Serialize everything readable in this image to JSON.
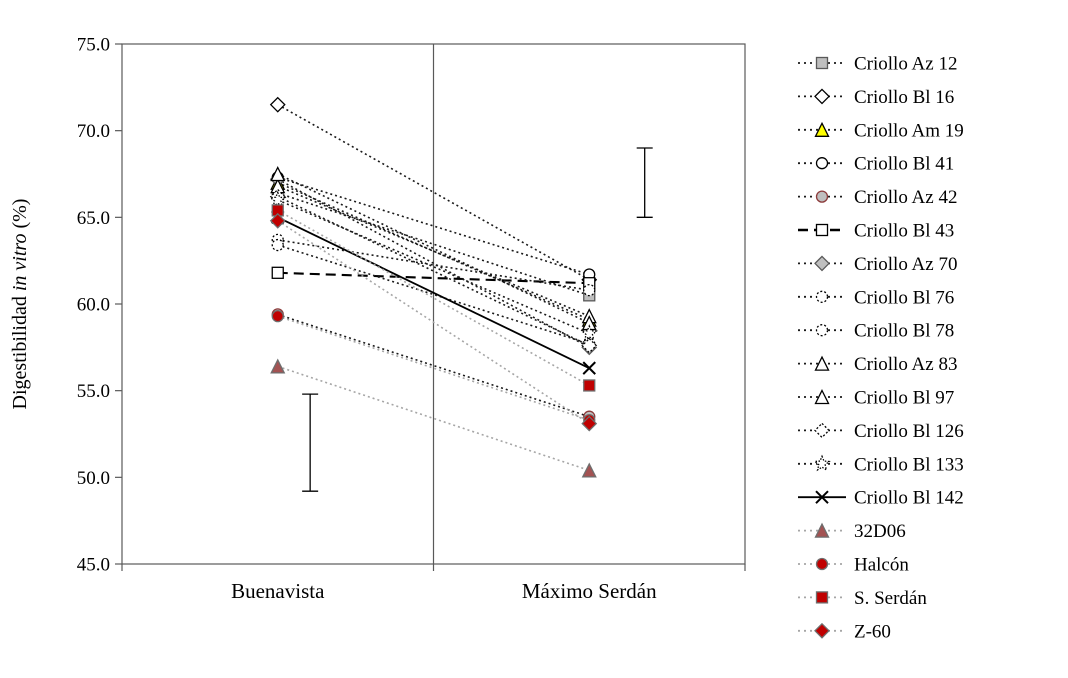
{
  "figure": {
    "background": "#ffffff",
    "border_color": "#595959",
    "criollo_line_color": "#1a1a1a",
    "hybrid_line_color": "#a6a6a6"
  },
  "chart_data": {
    "type": "line",
    "categories": [
      "Buenavista",
      "Máximo Serdán"
    ],
    "y_axis": {
      "label_pre": "Digestibilidad ",
      "label_italic": "in vitro",
      "label_post": " (%)",
      "min": 45,
      "max": 75,
      "step": 5,
      "tick_decimals": 1,
      "tick_labels": [
        "45.0",
        "50.0",
        "55.0",
        "60.0",
        "65.0",
        "70.0",
        "75.0"
      ]
    },
    "legend_position": "right",
    "series": [
      {
        "name": "Criollo Az 12",
        "marker": "square",
        "marker_fill": "#bfbfbf",
        "marker_stroke": "#595959",
        "marker_dash": "",
        "line_dash": "2 3",
        "line_color": "#1a1a1a",
        "values": [
          66.4,
          60.5
        ]
      },
      {
        "name": "Criollo Bl 16",
        "marker": "diamond",
        "marker_fill": "#ffffff",
        "marker_stroke": "#000000",
        "marker_dash": "",
        "line_dash": "2 3",
        "line_color": "#1a1a1a",
        "values": [
          71.5,
          61.4
        ]
      },
      {
        "name": "Criollo Am 19",
        "marker": "triangle",
        "marker_fill": "#ffff00",
        "marker_stroke": "#000000",
        "marker_dash": "",
        "line_dash": "2 3",
        "line_color": "#1a1a1a",
        "values": [
          67.0,
          59.1
        ]
      },
      {
        "name": "Criollo Bl 41",
        "marker": "circle",
        "marker_fill": "#ffffff",
        "marker_stroke": "#000000",
        "marker_dash": "",
        "line_dash": "2 3",
        "line_color": "#1a1a1a",
        "values": [
          67.3,
          61.7
        ]
      },
      {
        "name": "Criollo Az 42",
        "marker": "circle",
        "marker_fill": "#bfbfbf",
        "marker_stroke": "#8c3b3b",
        "marker_dash": "",
        "line_dash": "2 3",
        "line_color": "#1a1a1a",
        "values": [
          59.4,
          53.5
        ]
      },
      {
        "name": "Criollo Bl 43",
        "marker": "square",
        "marker_fill": "#ffffff",
        "marker_stroke": "#000000",
        "marker_dash": "",
        "line_dash": "10 6",
        "line_color": "#000000",
        "values": [
          61.8,
          61.2
        ]
      },
      {
        "name": "Criollo Az 70",
        "marker": "diamond",
        "marker_fill": "#bfbfbf",
        "marker_stroke": "#595959",
        "marker_dash": "",
        "line_dash": "2 3",
        "line_color": "#1a1a1a",
        "values": [
          67.2,
          57.5
        ]
      },
      {
        "name": "Criollo  Bl 76",
        "marker": "circle",
        "marker_fill": "#ffffff",
        "marker_stroke": "#000000",
        "marker_dash": "2 2",
        "line_dash": "2 3",
        "line_color": "#1a1a1a",
        "values": [
          63.7,
          60.8
        ]
      },
      {
        "name": "Criollo  Bl 78",
        "marker": "circle",
        "marker_fill": "#ffffff",
        "marker_stroke": "#000000",
        "marker_dash": "2 2",
        "line_dash": "2 3",
        "line_color": "#1a1a1a",
        "values": [
          63.4,
          57.7
        ]
      },
      {
        "name": "Criollo  Az 83",
        "marker": "triangle",
        "marker_fill": "#ffffff",
        "marker_stroke": "#000000",
        "marker_dash": "",
        "line_dash": "2 3",
        "line_color": "#1a1a1a",
        "values": [
          66.8,
          59.3
        ]
      },
      {
        "name": "Criollo Bl 97",
        "marker": "triangle",
        "marker_fill": "#ffffff",
        "marker_stroke": "#000000",
        "marker_dash": "",
        "line_dash": "2 3",
        "line_color": "#1a1a1a",
        "values": [
          67.5,
          58.9
        ]
      },
      {
        "name": "Criollo Bl 126",
        "marker": "diamond",
        "marker_fill": "#ffffff",
        "marker_stroke": "#000000",
        "marker_dash": "2 2",
        "line_dash": "2 3",
        "line_color": "#1a1a1a",
        "values": [
          66.2,
          57.6
        ]
      },
      {
        "name": "Criollo Bl 133",
        "marker": "star",
        "marker_fill": "#ffffff",
        "marker_stroke": "#000000",
        "marker_dash": "1.5 1.5",
        "line_dash": "2 3",
        "line_color": "#1a1a1a",
        "values": [
          66.0,
          58.3
        ]
      },
      {
        "name": "Criollo Bl 142",
        "marker": "x",
        "marker_fill": "none",
        "marker_stroke": "#000000",
        "marker_dash": "",
        "line_dash": "",
        "line_color": "#000000",
        "values": [
          65.0,
          56.3
        ]
      },
      {
        "name": "32D06",
        "marker": "triangle",
        "marker_fill": "#a35252",
        "marker_stroke": "#6e6e6e",
        "marker_dash": "",
        "line_dash": "2 3",
        "line_color": "#a6a6a6",
        "values": [
          56.4,
          50.4
        ]
      },
      {
        "name": "Halcón",
        "marker": "circle",
        "marker_fill": "#c00000",
        "marker_stroke": "#6e6e6e",
        "marker_dash": "",
        "line_dash": "2 3",
        "line_color": "#a6a6a6",
        "values": [
          59.3,
          53.3
        ]
      },
      {
        "name": "S. Serdán",
        "marker": "square",
        "marker_fill": "#c00000",
        "marker_stroke": "#6e6e6e",
        "marker_dash": "",
        "line_dash": "2 3",
        "line_color": "#a6a6a6",
        "values": [
          65.4,
          55.3
        ]
      },
      {
        "name": "Z-60",
        "marker": "diamond",
        "marker_fill": "#c00000",
        "marker_stroke": "#6e6e6e",
        "marker_dash": "",
        "line_dash": "2 3",
        "line_color": "#a6a6a6",
        "values": [
          64.8,
          53.1
        ]
      }
    ],
    "error_bars": [
      {
        "x_frac": 0.302,
        "y_low": 49.2,
        "y_high": 54.8
      },
      {
        "x_frac": 0.839,
        "y_low": 65.0,
        "y_high": 69.0
      }
    ]
  }
}
